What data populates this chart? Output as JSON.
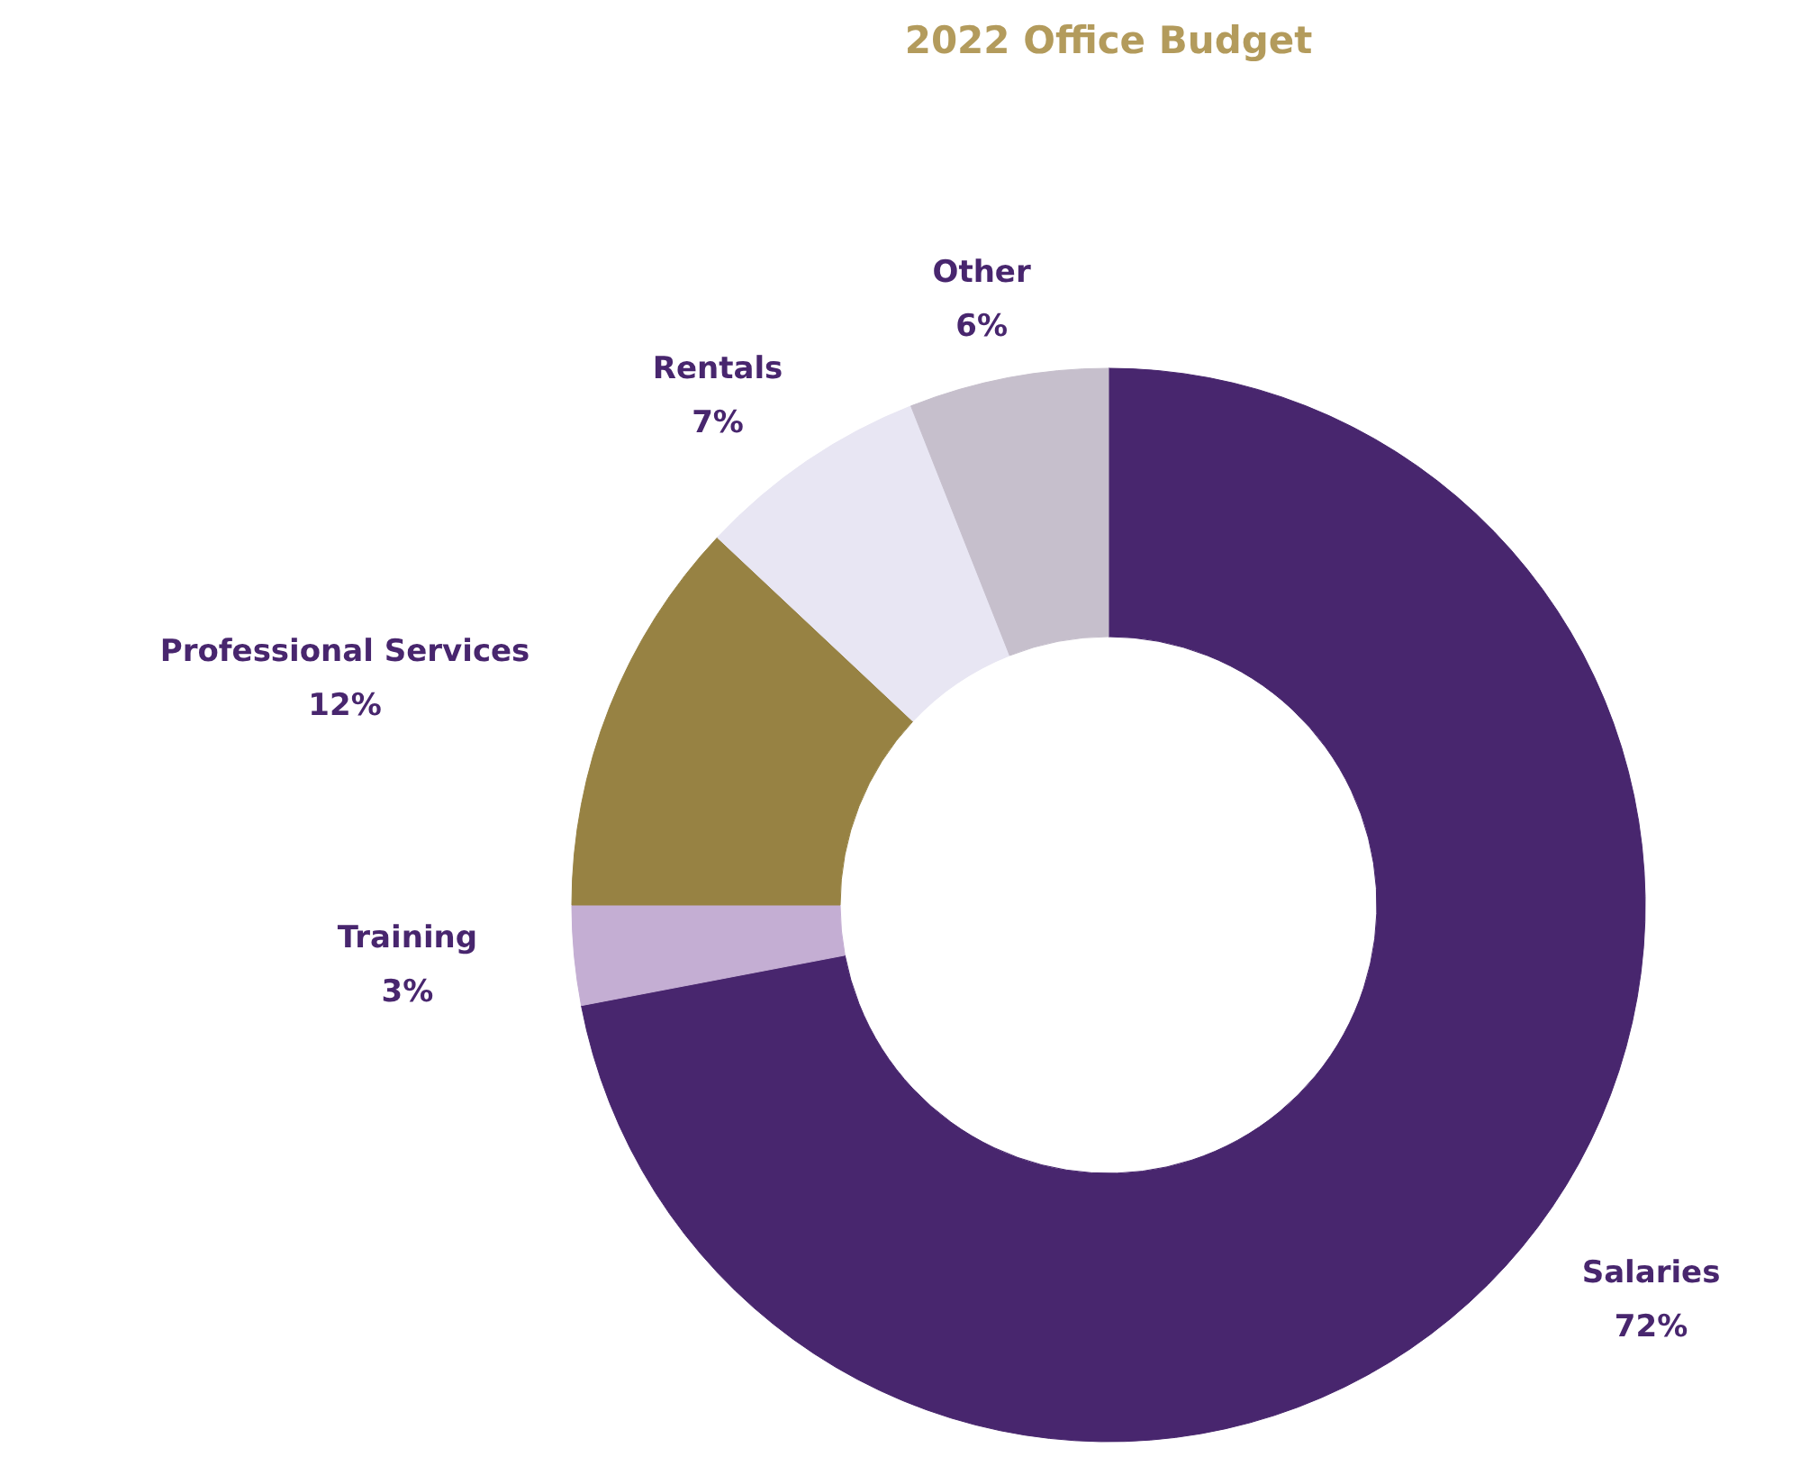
{
  "chart_data": {
    "type": "donut",
    "title": "2022 Office Budget",
    "categories": [
      "Salaries",
      "Training",
      "Professional Services",
      "Rentals",
      "Other"
    ],
    "values": [
      72,
      3,
      12,
      7,
      6
    ],
    "value_labels": [
      "72%",
      "3%",
      "12%",
      "7%",
      "6%"
    ],
    "colors": [
      "#48266e",
      "#c4aed3",
      "#978243",
      "#e8e6f3",
      "#c6bfcc"
    ]
  }
}
